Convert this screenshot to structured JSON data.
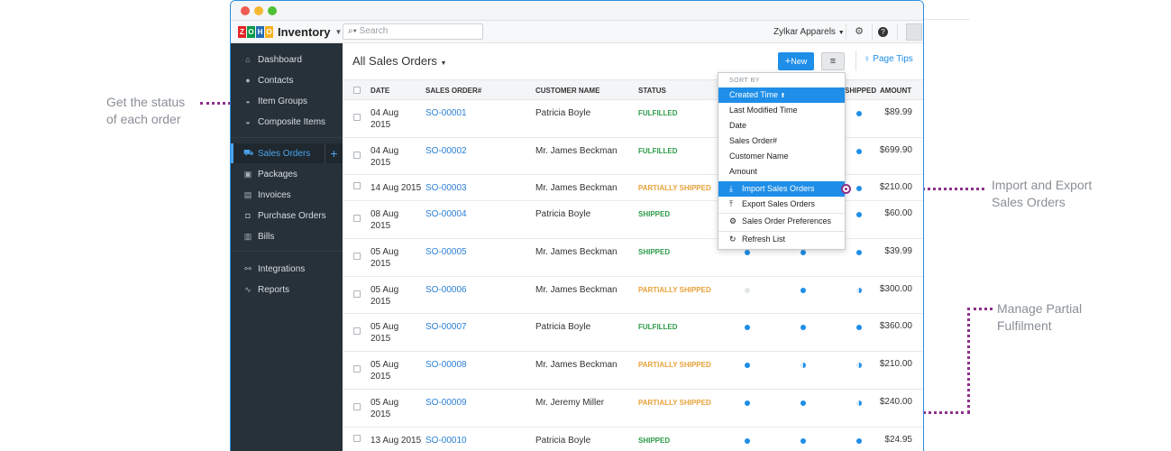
{
  "annotations": {
    "status": [
      "Get the status",
      "of each order"
    ],
    "import_export": [
      "Import and Export",
      "Sales Orders"
    ],
    "partial": [
      "Manage Partial",
      "Fulfilment"
    ]
  },
  "app": {
    "brand": "Inventory",
    "search_placeholder": "Search",
    "org": "Zylkar Apparels",
    "logo_letters": [
      "Z",
      "O",
      "H",
      "O"
    ],
    "logo_colors": [
      "#e42527",
      "#089949",
      "#226db4",
      "#f9b21d"
    ]
  },
  "sidebar": {
    "items": [
      {
        "label": "Dashboard",
        "icon": "home-icon"
      },
      {
        "label": "Contacts",
        "icon": "person-icon"
      },
      {
        "label": "Item Groups",
        "icon": "basket-icon"
      },
      {
        "label": "Composite Items",
        "icon": "basket-icon"
      },
      {
        "label": "Sales Orders",
        "icon": "cart-icon"
      },
      {
        "label": "Packages",
        "icon": "box-icon"
      },
      {
        "label": "Invoices",
        "icon": "invoice-icon"
      },
      {
        "label": "Purchase Orders",
        "icon": "bag-icon"
      },
      {
        "label": "Bills",
        "icon": "bill-icon"
      },
      {
        "label": "Integrations",
        "icon": "integrations-icon"
      },
      {
        "label": "Reports",
        "icon": "reports-icon"
      }
    ]
  },
  "main": {
    "title": "All Sales Orders",
    "new_label": "New",
    "tips_label": "Page Tips",
    "columns": {
      "date": "DATE",
      "so": "SALES ORDER#",
      "customer": "CUSTOMER NAME",
      "status": "STATUS",
      "shipped": "SHIPPED",
      "amount": "AMOUNT"
    },
    "rows": [
      {
        "date": [
          "04 Aug",
          "2015"
        ],
        "so": "SO-00001",
        "customer": "Patricia Boyle",
        "status": "FULFILLED",
        "amount": "$89.99"
      },
      {
        "date": [
          "04 Aug",
          "2015"
        ],
        "so": "SO-00002",
        "customer": "Mr. James Beckman",
        "status": "FULFILLED",
        "amount": "$699.90"
      },
      {
        "date": [
          "14 Aug 2015",
          ""
        ],
        "so": "SO-00003",
        "customer": "Mr. James Beckman",
        "status": "PARTIALLY SHIPPED",
        "amount": "$210.00"
      },
      {
        "date": [
          "08 Aug",
          "2015"
        ],
        "so": "SO-00004",
        "customer": "Patricia Boyle",
        "status": "SHIPPED",
        "amount": "$60.00"
      },
      {
        "date": [
          "05 Aug",
          "2015"
        ],
        "so": "SO-00005",
        "customer": "Mr. James Beckman",
        "status": "SHIPPED",
        "amount": "$39.99"
      },
      {
        "date": [
          "05 Aug",
          "2015"
        ],
        "so": "SO-00006",
        "customer": "Mr. James Beckman",
        "status": "PARTIALLY SHIPPED",
        "amount": "$300.00"
      },
      {
        "date": [
          "05 Aug",
          "2015"
        ],
        "so": "SO-00007",
        "customer": "Patricia Boyle",
        "status": "FULFILLED",
        "amount": "$360.00"
      },
      {
        "date": [
          "05 Aug",
          "2015"
        ],
        "so": "SO-00008",
        "customer": "Mr. James Beckman",
        "status": "PARTIALLY SHIPPED",
        "amount": "$210.00"
      },
      {
        "date": [
          "05 Aug",
          "2015"
        ],
        "so": "SO-00009",
        "customer": "Mr. Jeremy Miller",
        "status": "PARTIALLY SHIPPED",
        "amount": "$240.00"
      },
      {
        "date": [
          "13 Aug 2015",
          ""
        ],
        "so": "SO-00010",
        "customer": "Patricia Boyle",
        "status": "SHIPPED",
        "amount": "$24.95"
      }
    ]
  },
  "dropdown": {
    "heading": "SORT BY",
    "sort_items": [
      "Created Time",
      "Last Modified Time",
      "Date",
      "Sales Order#",
      "Customer Name",
      "Amount"
    ],
    "actions": [
      "Import Sales Orders",
      "Export Sales Orders",
      "Sales Order Preferences",
      "Refresh List"
    ]
  },
  "colors": {
    "fulfilled": "#2e9c4a",
    "partially_shipped": "#e8a23a",
    "shipped": "#2e9c4a",
    "accent": "#1e8ee8",
    "annotation_line": "#8e2f8a"
  }
}
